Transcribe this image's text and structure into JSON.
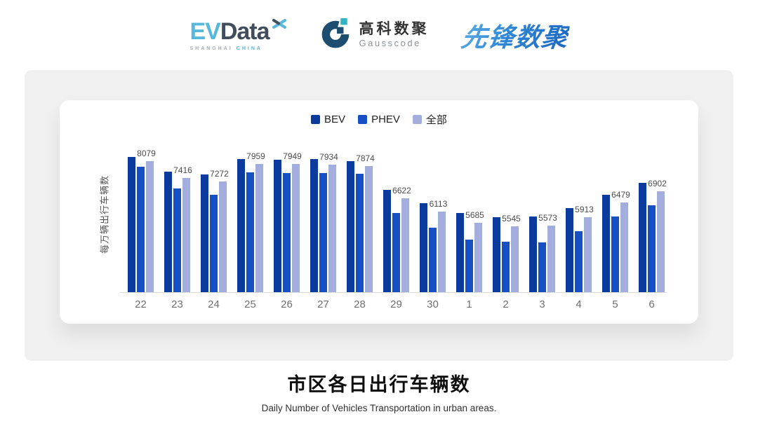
{
  "header": {
    "evdata": {
      "ev": "EV",
      "data": "Data",
      "sub_left": "SHANGHAI",
      "sub_right": "CHINA"
    },
    "gausscode": {
      "cn": "高科数聚",
      "en": "Gausscode"
    },
    "pioneer": "先锋数聚"
  },
  "chart_data": {
    "type": "bar",
    "title": "市区各日出行车辆数",
    "subtitle": "Daily Number of Vehicles Transportation in urban areas.",
    "ylabel": "每万辆出行车辆数",
    "xlabel": "",
    "categories": [
      "22",
      "23",
      "24",
      "25",
      "26",
      "27",
      "28",
      "29",
      "30",
      "1",
      "2",
      "3",
      "4",
      "5",
      "6"
    ],
    "series": [
      {
        "name": "BEV",
        "color": "#0b3b9d",
        "values": [
          8230,
          7660,
          7550,
          8150,
          8130,
          8140,
          8070,
          6950,
          6450,
          6050,
          5900,
          5940,
          6250,
          6780,
          7220
        ]
      },
      {
        "name": "PHEV",
        "color": "#1650c4",
        "values": [
          7860,
          7000,
          6780,
          7630,
          7620,
          7610,
          7570,
          6070,
          5500,
          5030,
          4940,
          4920,
          5350,
          5930,
          6370
        ]
      },
      {
        "name": "全部",
        "color": "#a3aedd",
        "labels_shown": true,
        "values": [
          8079,
          7416,
          7272,
          7959,
          7949,
          7934,
          7874,
          6622,
          6113,
          5685,
          5545,
          5573,
          5913,
          6479,
          6902
        ]
      }
    ],
    "ylim": [
      3000,
      9100
    ],
    "legend_position": "top",
    "grid": false,
    "baseline_color": "#dcdcdc",
    "label_color": "#4b4b4b"
  },
  "colors": {
    "panel_bg": "#f0f0f1",
    "card_bg": "#ffffff",
    "evdata_blue": "#56b8dc",
    "evdata_slate": "#414d5c",
    "gauss_navy": "#1d4e70",
    "gauss_teal": "#30b4c2",
    "pioneer_blue": "#2878cc"
  }
}
